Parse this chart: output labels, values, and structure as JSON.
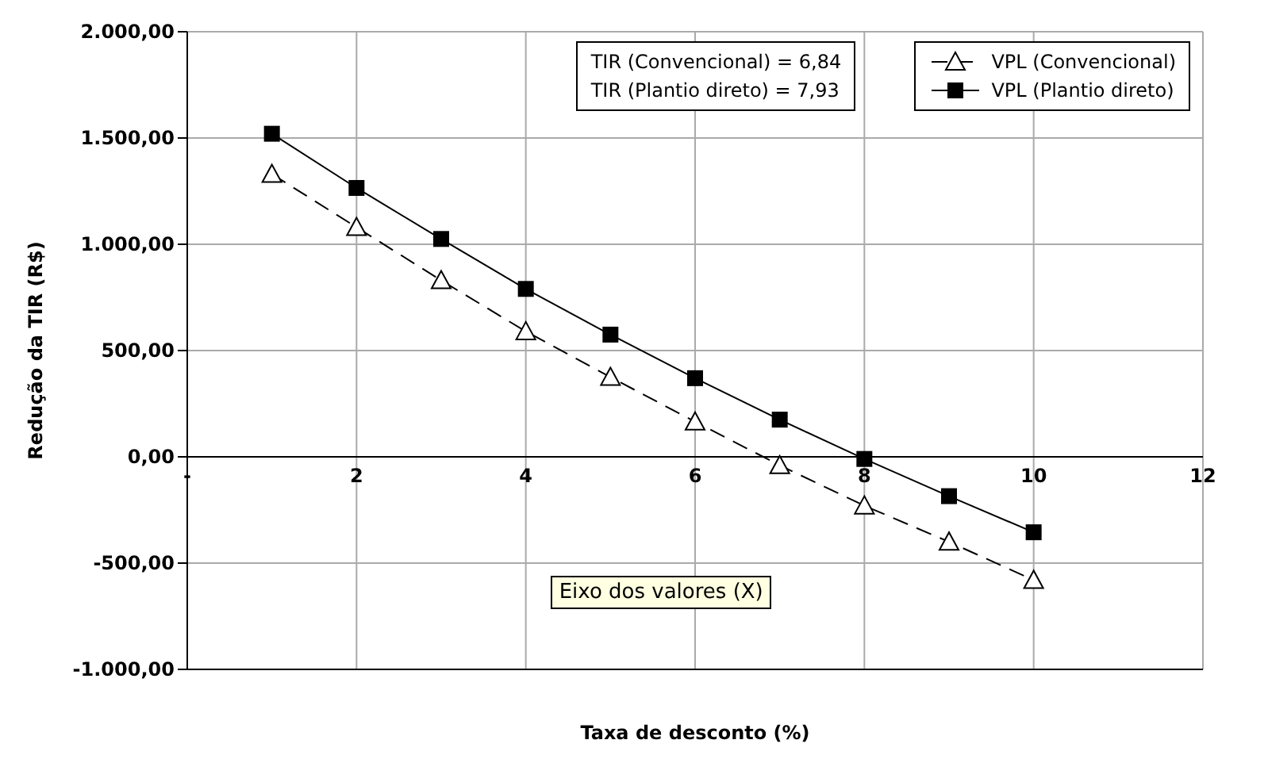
{
  "chart_data": {
    "type": "line",
    "xlabel": "Taxa de desconto (%)",
    "ylabel": "Redução da TIR (R$)",
    "x": [
      1,
      2,
      3,
      4,
      5,
      6,
      7,
      8,
      9,
      10
    ],
    "series": [
      {
        "name": "VPL (Convencional)",
        "color": "#000000",
        "marker": "triangle",
        "line_style": "dashed",
        "values": [
          1330,
          1080,
          830,
          590,
          375,
          165,
          -40,
          -230,
          -400,
          -580
        ]
      },
      {
        "name": "VPL (Plantio direto)",
        "color": "#000000",
        "marker": "square",
        "line_style": "solid",
        "values": [
          1520,
          1265,
          1025,
          790,
          575,
          370,
          175,
          -10,
          -185,
          -355
        ]
      }
    ],
    "xlim": [
      0,
      12
    ],
    "xticks": [
      {
        "value": 0,
        "label": "-"
      },
      2,
      4,
      6,
      8,
      10,
      12
    ],
    "ylim": [
      -1000,
      2000
    ],
    "yticks": [
      {
        "value": -1000,
        "label": "-1.000,00"
      },
      {
        "value": -500,
        "label": "-500,00"
      },
      {
        "value": 0,
        "label": "0,00"
      },
      {
        "value": 500,
        "label": "500,00"
      },
      {
        "value": 1000,
        "label": "1.000,00"
      },
      {
        "value": 1500,
        "label": "1.500,00"
      },
      {
        "value": 2000,
        "label": "2.000,00"
      }
    ],
    "grid": true,
    "legend": "top right",
    "annotations": [
      "TIR (Convencional) = 6,84",
      "TIR (Plantio direto) = 7,93",
      "Eixo dos valores (X)"
    ]
  }
}
